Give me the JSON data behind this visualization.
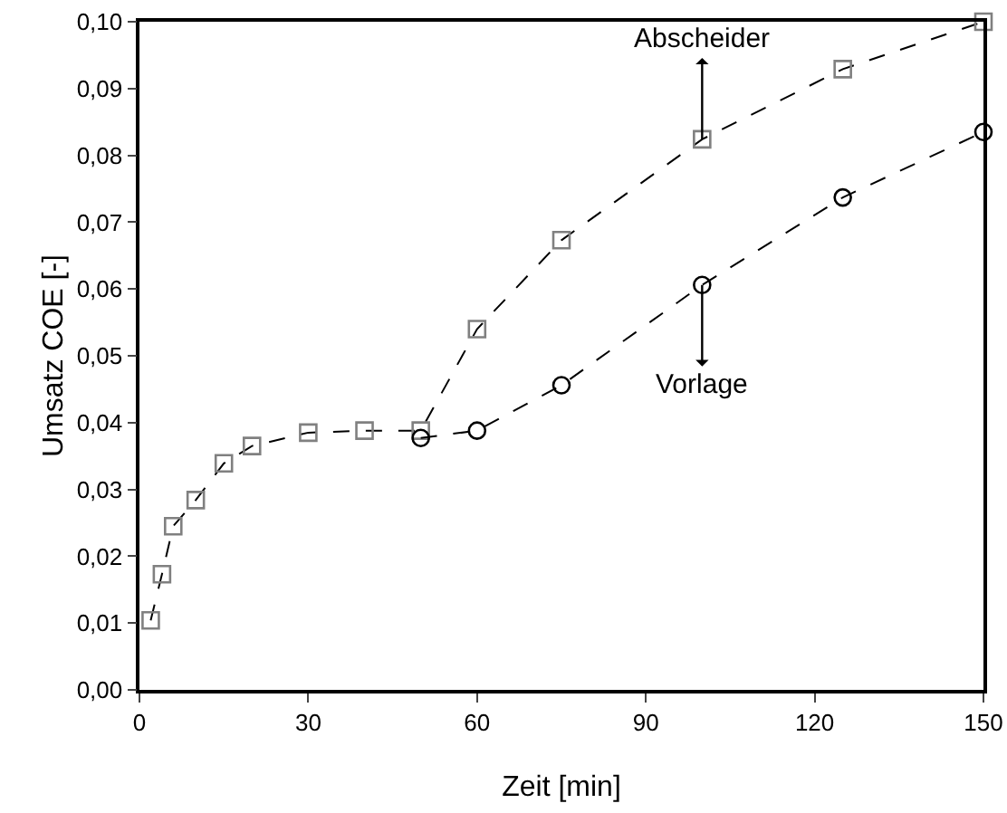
{
  "chart_data": {
    "type": "line",
    "xlabel": "Zeit [min]",
    "ylabel": "Umsatz COE [-]",
    "series": [
      {
        "color": "#808080",
        "marker": "square",
        "x": [
          2,
          4,
          6,
          10,
          15,
          20,
          30,
          40,
          50,
          60,
          75,
          100,
          125,
          150
        ],
        "values": [
          0.0104,
          0.0173,
          0.0245,
          0.0284,
          0.0339,
          0.0365,
          0.0385,
          0.0388,
          0.0388,
          0.054,
          0.0673,
          0.0824,
          0.0929,
          0.1
        ]
      },
      {
        "color": "#000000",
        "marker": "circle",
        "x": [
          50,
          60,
          75,
          100,
          125,
          150
        ],
        "values": [
          0.0377,
          0.0388,
          0.0456,
          0.0606,
          0.0737,
          0.0835
        ]
      }
    ],
    "line_style": "dashed",
    "xlim": [
      0,
      150
    ],
    "xticks": [
      0,
      30,
      60,
      90,
      120,
      150
    ],
    "ylim": [
      0,
      0.1
    ],
    "yticks": [
      {
        "value": 0,
        "label": "0,00"
      },
      {
        "value": 0.01,
        "label": "0,01"
      },
      {
        "value": 0.02,
        "label": "0,02"
      },
      {
        "value": 0.03,
        "label": "0,03"
      },
      {
        "value": 0.04,
        "label": "0,04"
      },
      {
        "value": 0.05,
        "label": "0,05"
      },
      {
        "value": 0.06,
        "label": "0,06"
      },
      {
        "value": 0.07,
        "label": "0,07"
      },
      {
        "value": 0.08,
        "label": "0,08"
      },
      {
        "value": 0.09,
        "label": "0,09"
      },
      {
        "value": 0.1,
        "label": "0,10"
      }
    ],
    "annotations": [
      {
        "text": "Abscheider",
        "x": 100,
        "y": 0.0824
      },
      {
        "text": "Vorlage",
        "x": 100,
        "y": 0.0606
      }
    ]
  }
}
